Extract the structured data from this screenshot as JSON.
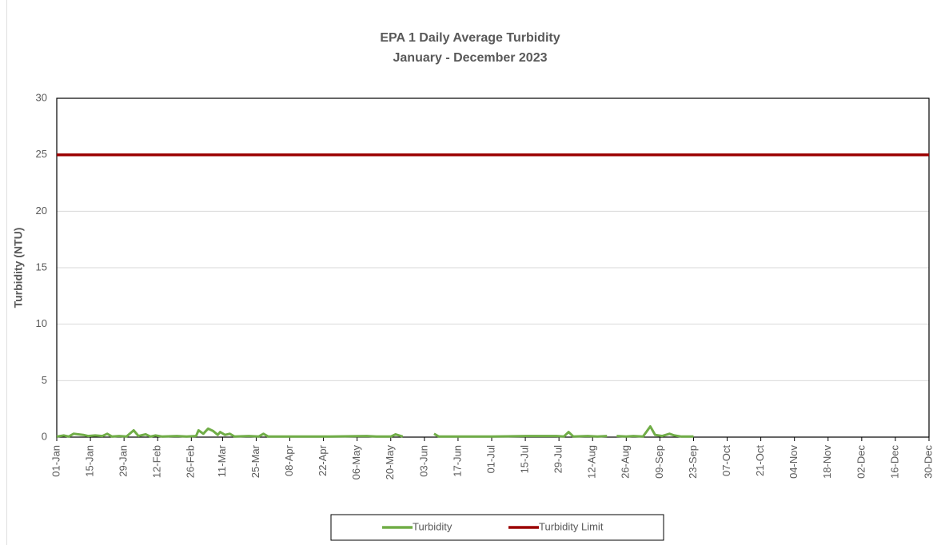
{
  "chart_data": {
    "type": "line",
    "title": "EPA 1 Daily Average Turbidity",
    "subtitle": "January - December 2023",
    "y_label": "Turbidity (NTU)",
    "xlim": [
      "01-Jan",
      "30-Dec"
    ],
    "xticks": [
      "01-Jan",
      "15-Jan",
      "29-Jan",
      "12-Feb",
      "26-Feb",
      "11-Mar",
      "25-Mar",
      "08-Apr",
      "22-Apr",
      "06-May",
      "20-May",
      "03-Jun",
      "17-Jun",
      "01-Jul",
      "15-Jul",
      "29-Jul",
      "12-Aug",
      "26-Aug",
      "09-Sep",
      "23-Sep",
      "07-Oct",
      "21-Oct",
      "04-Nov",
      "18-Nov",
      "02-Dec",
      "16-Dec",
      "30-Dec"
    ],
    "ylim": [
      0,
      30
    ],
    "yticks": [
      0,
      5,
      10,
      15,
      20,
      25,
      30
    ],
    "grid": true,
    "legend": "bottom",
    "series": [
      {
        "name": "Turbidity",
        "color": "#70ad47",
        "x": [
          "01-Jan",
          "04-Jan",
          "06-Jan",
          "08-Jan",
          "10-Jan",
          "12-Jan",
          "14-Jan",
          "17-Jan",
          "20-Jan",
          "22-Jan",
          "24-Jan",
          "27-Jan",
          "30-Jan",
          "02-Feb",
          "04-Feb",
          "07-Feb",
          "09-Feb",
          "11-Feb",
          "14-Feb",
          "20-Feb",
          "24-Feb",
          "28-Feb",
          "01-Mar",
          "03-Mar",
          "05-Mar",
          "07-Mar",
          "09-Mar",
          "10-Mar",
          "12-Mar",
          "14-Mar",
          "16-Mar",
          "22-Mar",
          "26-Mar",
          "28-Mar",
          "30-Mar",
          "10-Apr",
          "25-Apr",
          "10-May",
          "14-May",
          "20-May",
          "22-May",
          "25-May",
          "01-Jun",
          "07-Jun",
          "09-Jun",
          "01-Jul",
          "16-Jul",
          "28-Jul",
          "31-Jul",
          "02-Aug",
          "04-Aug",
          "10-Aug",
          "14-Aug",
          "18-Aug",
          "20-Aug",
          "22-Aug",
          "26-Aug",
          "29-Aug",
          "02-Sep",
          "05-Sep",
          "07-Sep",
          "10-Sep",
          "13-Sep",
          "15-Sep",
          "18-Sep",
          "23-Sep"
        ],
        "values": [
          0.05,
          0.15,
          0.05,
          0.3,
          0.25,
          0.2,
          0.1,
          0.15,
          0.1,
          0.3,
          0.05,
          0.1,
          0.05,
          0.6,
          0.1,
          0.25,
          0.05,
          0.15,
          0.05,
          0.1,
          0.05,
          0.1,
          0.6,
          0.3,
          0.75,
          0.55,
          0.2,
          0.45,
          0.2,
          0.3,
          0.05,
          0.1,
          0.05,
          0.3,
          0.05,
          0.05,
          0.05,
          0.1,
          0.05,
          0.05,
          0.25,
          0.05,
          null,
          0.3,
          0.05,
          0.05,
          0.1,
          0.1,
          0.05,
          0.45,
          0.05,
          0.1,
          0.05,
          0.1,
          null,
          0.1,
          0.05,
          0.1,
          0.05,
          0.95,
          0.2,
          0.1,
          0.3,
          0.15,
          0.05,
          0.05
        ]
      },
      {
        "name": "Turbidity Limit",
        "color": "#9b0000",
        "x": [
          "01-Jan",
          "30-Dec"
        ],
        "values": [
          25,
          25
        ]
      }
    ]
  }
}
